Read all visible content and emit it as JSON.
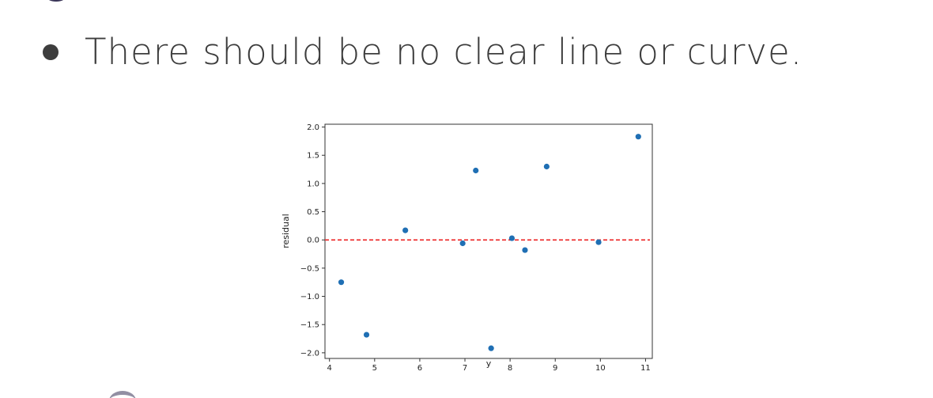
{
  "slide": {
    "bullet_text": "There should be no clear line or curve."
  },
  "chart_data": {
    "type": "scatter",
    "xlabel": "y",
    "ylabel": "residual",
    "xlim": [
      3.9,
      11.15
    ],
    "ylim": [
      -2.1,
      2.05
    ],
    "x_ticks": [
      "4",
      "5",
      "6",
      "7",
      "8",
      "9",
      "10",
      "11"
    ],
    "y_ticks": [
      "2.0",
      "1.5",
      "1.0",
      "0.5",
      "0.0",
      "−0.5",
      "−1.0",
      "−1.5",
      "−2.0"
    ],
    "points": [
      {
        "x": 4.26,
        "y": -0.75
      },
      {
        "x": 4.82,
        "y": -1.68
      },
      {
        "x": 5.68,
        "y": 0.17
      },
      {
        "x": 6.95,
        "y": -0.06
      },
      {
        "x": 7.24,
        "y": 1.23
      },
      {
        "x": 7.58,
        "y": -1.92
      },
      {
        "x": 8.04,
        "y": 0.03
      },
      {
        "x": 8.33,
        "y": -0.18
      },
      {
        "x": 8.81,
        "y": 1.3
      },
      {
        "x": 9.96,
        "y": -0.04
      },
      {
        "x": 10.84,
        "y": 1.83
      }
    ],
    "reference_line": {
      "y": 0,
      "style": "dashed",
      "color": "#ee3333"
    },
    "point_color": "#1f6fb4",
    "grid": false,
    "legend": "none"
  }
}
